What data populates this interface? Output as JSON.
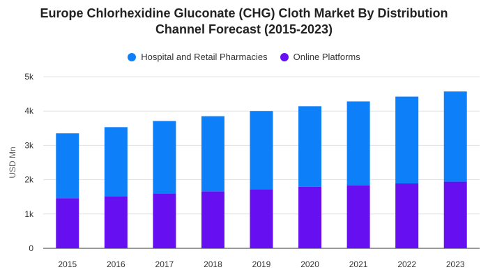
{
  "chart_data": {
    "type": "bar",
    "stacked": true,
    "title_line1": "Europe Chlorhexidine Gluconate (CHG) Cloth Market By Distribution",
    "title_line2": "Channel Forecast (2015-2023)",
    "xlabel": "",
    "ylabel": "USD Mn",
    "ylim": [
      0,
      5000
    ],
    "y_ticks": [
      {
        "value": 0,
        "label": "0"
      },
      {
        "value": 1000,
        "label": "1k"
      },
      {
        "value": 2000,
        "label": "2k"
      },
      {
        "value": 3000,
        "label": "3k"
      },
      {
        "value": 4000,
        "label": "4k"
      },
      {
        "value": 5000,
        "label": "5k"
      }
    ],
    "grid": true,
    "legend_position": "top-center",
    "categories": [
      "2015",
      "2016",
      "2017",
      "2018",
      "2019",
      "2020",
      "2021",
      "2022",
      "2023"
    ],
    "series": [
      {
        "name": "Online Platforms",
        "color": "#6610f2",
        "values": [
          1460,
          1520,
          1600,
          1660,
          1720,
          1790,
          1830,
          1890,
          1940
        ]
      },
      {
        "name": "Hospital and Retail Pharmacies",
        "color": "#0d7ff9",
        "values": [
          1890,
          2010,
          2110,
          2190,
          2280,
          2350,
          2450,
          2530,
          2630
        ]
      }
    ],
    "legend_order": [
      1,
      0
    ]
  }
}
